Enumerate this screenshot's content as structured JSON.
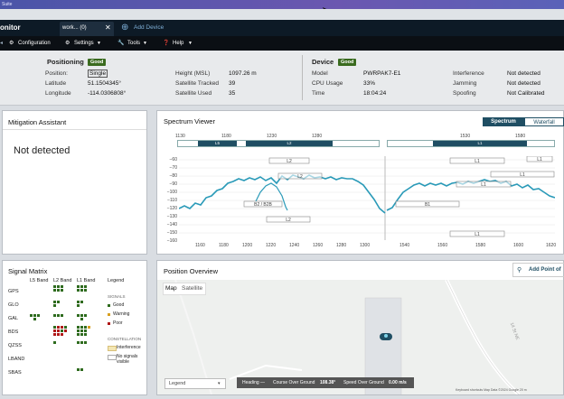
{
  "window": {
    "title": "Suite"
  },
  "tabs": {
    "app_name": "onitor",
    "active_tab": "work... (0)",
    "add_device": "Add Device"
  },
  "menu": {
    "items": [
      "Configuration",
      "Settings",
      "Tools",
      "Help"
    ]
  },
  "positioning": {
    "title": "Positioning",
    "badge": "Good",
    "rows": [
      {
        "label": "Position:",
        "value": "Single"
      },
      {
        "label": "Latitude",
        "value": "51.1504345°"
      },
      {
        "label": "Longitude",
        "value": "-114.0306808°"
      }
    ],
    "rows2": [
      {
        "label": "Height (MSL)",
        "value": "1097.26 m"
      },
      {
        "label": "Satellite Tracked",
        "value": "39"
      },
      {
        "label": "Satellite Used",
        "value": "35"
      }
    ]
  },
  "device": {
    "title": "Device",
    "badge": "Good",
    "rows": [
      {
        "label": "Model",
        "value": "PWRPAK7-E1"
      },
      {
        "label": "CPU Usage",
        "value": "33%"
      },
      {
        "label": "Time",
        "value": "18:04:24"
      }
    ],
    "rows2": [
      {
        "label": "Interference",
        "value": "Not detected"
      },
      {
        "label": "Jamming",
        "value": "Not detected"
      },
      {
        "label": "Spoofing",
        "value": "Not Calibrated"
      }
    ]
  },
  "mitigation": {
    "title": "Mitigation Assistant",
    "status": "Not detected"
  },
  "spectrum": {
    "title": "Spectrum Viewer",
    "modes": [
      "Spectrum",
      "Waterfall"
    ],
    "top_ticks": [
      "1130",
      "1180",
      "1230",
      "1280",
      "1530",
      "1580"
    ],
    "band_labels": [
      "L5",
      "L2",
      "L1"
    ],
    "y_ticks": [
      "−60",
      "−70",
      "−80",
      "−90",
      "−100",
      "−110",
      "−120",
      "−130",
      "−140",
      "−150",
      "−160"
    ],
    "x_ticks_left": [
      "1160",
      "1180",
      "1200",
      "1220",
      "1240",
      "1260",
      "1280",
      "1300"
    ],
    "x_ticks_right": [
      "1540",
      "1560",
      "1580",
      "1600",
      "1620"
    ],
    "boxes": [
      "L2",
      "L2",
      "B2 / B2B",
      "L2",
      "L1",
      "L1",
      "L1",
      "B1",
      "L1",
      "L1"
    ]
  },
  "signal_matrix": {
    "title": "Signal Matrix",
    "bands": [
      "L5 Band",
      "L2 Band",
      "L1 Band"
    ],
    "constellations": [
      "GPS",
      "GLO",
      "GAL",
      "BDS",
      "QZSS",
      "LBAND",
      "SBAS"
    ],
    "legend": {
      "title": "Legend",
      "signals_header": "SIGNALS",
      "signals": [
        "Good",
        "Warning",
        "Poor"
      ],
      "constellation_header": "CONSTELLATION",
      "constellation_items": [
        "Interference",
        "No signals visible"
      ]
    },
    "colors": {
      "good": "#2e6b1e",
      "warning": "#d8a020",
      "poor": "#b01818"
    }
  },
  "position": {
    "title": "Position Overview",
    "add_poi": "Add Point of",
    "map_tabs": [
      "Map",
      "Satellite"
    ],
    "legend_select": "Legend",
    "status_bar": {
      "heading": "Heading —",
      "cog_label": "Course Over Ground",
      "cog_value": "108.38°",
      "sog_label": "Speed Over Ground",
      "sog_value": "0.00 m/s"
    },
    "attrib": "Keyboard shortcuts   Map Data ©2024 Google   20 m",
    "road_label": "14 St NE"
  }
}
